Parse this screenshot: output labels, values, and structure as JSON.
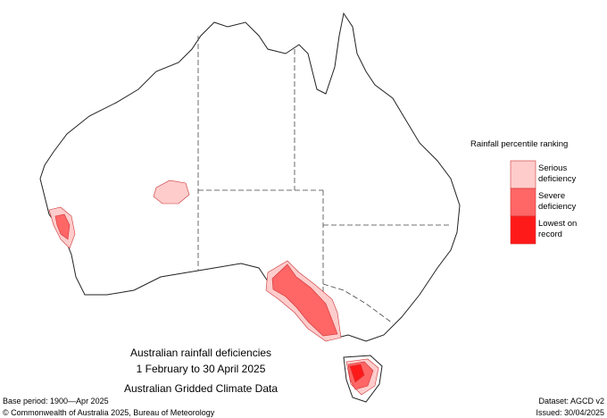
{
  "map": {
    "caption_lines": [
      "Australian rainfall deficiencies",
      "1 February to 30 April 2025",
      "Australian Gridded Climate Data"
    ],
    "legend": {
      "title": "Rainfall percentile ranking",
      "items": [
        {
          "label": "Serious deficiency",
          "color": "#ffcccc"
        },
        {
          "label": "Severe deficiency",
          "color": "#ff6666"
        },
        {
          "label": "Lowest on record",
          "color": "#ff1a1a"
        }
      ]
    },
    "footer": {
      "base_period": "Base period: 1900—Apr 2025",
      "copyright": "© Commonwealth of Australia 2025, Bureau of Meteorology",
      "dataset": "Dataset: AGCD v2",
      "issued": "Issued: 30/04/2025"
    }
  }
}
